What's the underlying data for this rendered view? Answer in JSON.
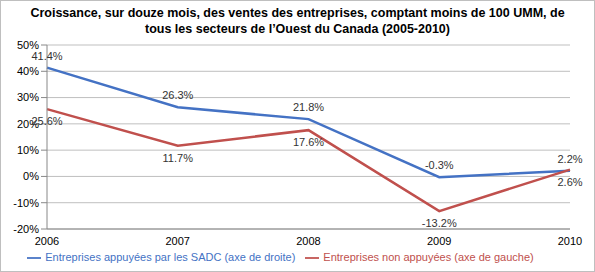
{
  "chart_data": {
    "type": "line",
    "title": "Croissance, sur douze mois, des ventes des entreprises, comptant moins de 100 UMM, de tous les secteurs de l’Ouest du Canada (2005-2010)",
    "categories": [
      "2006",
      "2007",
      "2008",
      "2009",
      "2010"
    ],
    "series": [
      {
        "name": "Entreprises appuyées par les SADC (axe de droite)",
        "color": "#4472C4",
        "values": [
          41.4,
          26.3,
          21.8,
          -0.3,
          2.2
        ],
        "value_labels": [
          "41.4%",
          "26.3%",
          "21.8%",
          "-0.3%",
          "2.2%"
        ],
        "marker": "none",
        "line_style": "solid"
      },
      {
        "name": "Entreprises non appuyées (axe de gauche)",
        "color": "#C0504D",
        "values": [
          25.6,
          11.7,
          17.6,
          -13.2,
          2.6
        ],
        "value_labels": [
          "25.6%",
          "11.7%",
          "17.6%",
          "-13.2%",
          "2.6%"
        ],
        "marker": "none",
        "line_style": "solid"
      }
    ],
    "ylim": [
      -20,
      50
    ],
    "yticks": [
      {
        "value": -20,
        "label": "-20%"
      },
      {
        "value": -10,
        "label": "-10%"
      },
      {
        "value": 0,
        "label": "0%"
      },
      {
        "value": 10,
        "label": "10%"
      },
      {
        "value": 20,
        "label": "20%"
      },
      {
        "value": 30,
        "label": "30%"
      },
      {
        "value": 40,
        "label": "40%"
      },
      {
        "value": 50,
        "label": "50%"
      }
    ],
    "grid": true,
    "legend": "bottom",
    "data_labels": true
  }
}
